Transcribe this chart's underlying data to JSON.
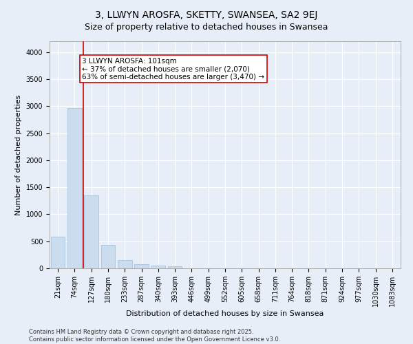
{
  "title": "3, LLWYN AROSFA, SKETTY, SWANSEA, SA2 9EJ",
  "subtitle": "Size of property relative to detached houses in Swansea",
  "xlabel": "Distribution of detached houses by size in Swansea",
  "ylabel": "Number of detached properties",
  "bar_color": "#ccdcef",
  "bar_edge_color": "#a8c4e0",
  "background_color": "#e8eef8",
  "grid_color": "#ffffff",
  "annotation_line_color": "#cc0000",
  "annotation_box_color": "#cc0000",
  "annotation_text": "3 LLWYN AROSFA: 101sqm\n← 37% of detached houses are smaller (2,070)\n63% of semi-detached houses are larger (3,470) →",
  "categories": [
    "21sqm",
    "74sqm",
    "127sqm",
    "180sqm",
    "233sqm",
    "287sqm",
    "340sqm",
    "393sqm",
    "446sqm",
    "499sqm",
    "552sqm",
    "605sqm",
    "658sqm",
    "711sqm",
    "764sqm",
    "818sqm",
    "871sqm",
    "924sqm",
    "977sqm",
    "1030sqm",
    "1083sqm"
  ],
  "values": [
    580,
    2970,
    1350,
    430,
    155,
    75,
    45,
    40,
    0,
    0,
    0,
    0,
    0,
    0,
    0,
    0,
    0,
    0,
    0,
    0,
    0
  ],
  "ylim": [
    0,
    4200
  ],
  "yticks": [
    0,
    500,
    1000,
    1500,
    2000,
    2500,
    3000,
    3500,
    4000
  ],
  "footer": "Contains HM Land Registry data © Crown copyright and database right 2025.\nContains public sector information licensed under the Open Government Licence v3.0.",
  "title_fontsize": 10,
  "subtitle_fontsize": 9,
  "axis_label_fontsize": 8,
  "tick_fontsize": 7,
  "footer_fontsize": 6,
  "annot_fontsize": 7.5,
  "vline_x": 1.5
}
